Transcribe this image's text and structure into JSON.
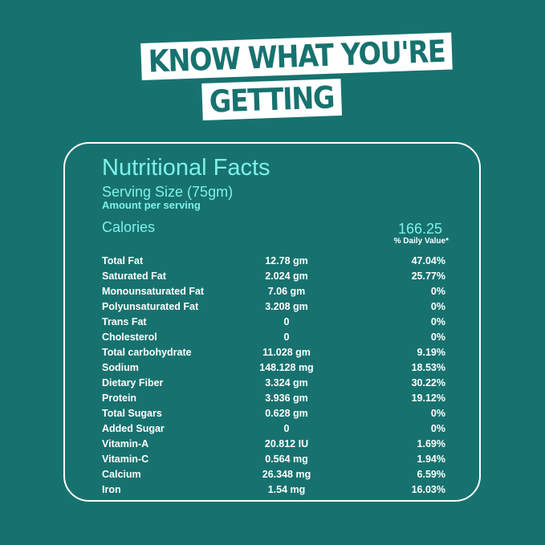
{
  "headline": {
    "line1": "Know What You're",
    "line2": "Getting"
  },
  "facts": {
    "title": "Nutritional Facts",
    "serving_size": "Serving Size (75gm)",
    "amount_per_serving": "Amount per serving",
    "calories_label": "Calories",
    "calories_value": "166.25",
    "daily_value_header": "% Daily Value*",
    "rows": [
      {
        "name": "Total Fat",
        "amount": "12.78 gm",
        "dv": "47.04%"
      },
      {
        "name": "Saturated Fat",
        "amount": "2.024 gm",
        "dv": "25.77%"
      },
      {
        "name": "Monounsaturated Fat",
        "amount": "7.06 gm",
        "dv": "0%"
      },
      {
        "name": "Polyunsaturated Fat",
        "amount": "3.208 gm",
        "dv": "0%"
      },
      {
        "name": "Trans Fat",
        "amount": "0",
        "dv": "0%"
      },
      {
        "name": "Cholesterol",
        "amount": "0",
        "dv": "0%"
      },
      {
        "name": "Total carbohydrate",
        "amount": "11.028 gm",
        "dv": "9.19%"
      },
      {
        "name": "Sodium",
        "amount": "148.128 mg",
        "dv": "18.53%"
      },
      {
        "name": "Dietary Fiber",
        "amount": "3.324 gm",
        "dv": "30.22%"
      },
      {
        "name": "Protein",
        "amount": "3.936 gm",
        "dv": "19.12%"
      },
      {
        "name": "Total Sugars",
        "amount": "0.628 gm",
        "dv": "0%"
      },
      {
        "name": "Added Sugar",
        "amount": "0",
        "dv": "0%"
      },
      {
        "name": "Vitamin-A",
        "amount": "20.812 IU",
        "dv": "1.69%"
      },
      {
        "name": "Vitamin-C",
        "amount": "0.564 mg",
        "dv": "1.94%"
      },
      {
        "name": "Calcium",
        "amount": "26.348 mg",
        "dv": "6.59%"
      },
      {
        "name": "Iron",
        "amount": "1.54 mg",
        "dv": "16.03%"
      }
    ]
  },
  "colors": {
    "background": "#17726f",
    "accent_text": "#7ef0e9",
    "text": "#ffffff"
  }
}
